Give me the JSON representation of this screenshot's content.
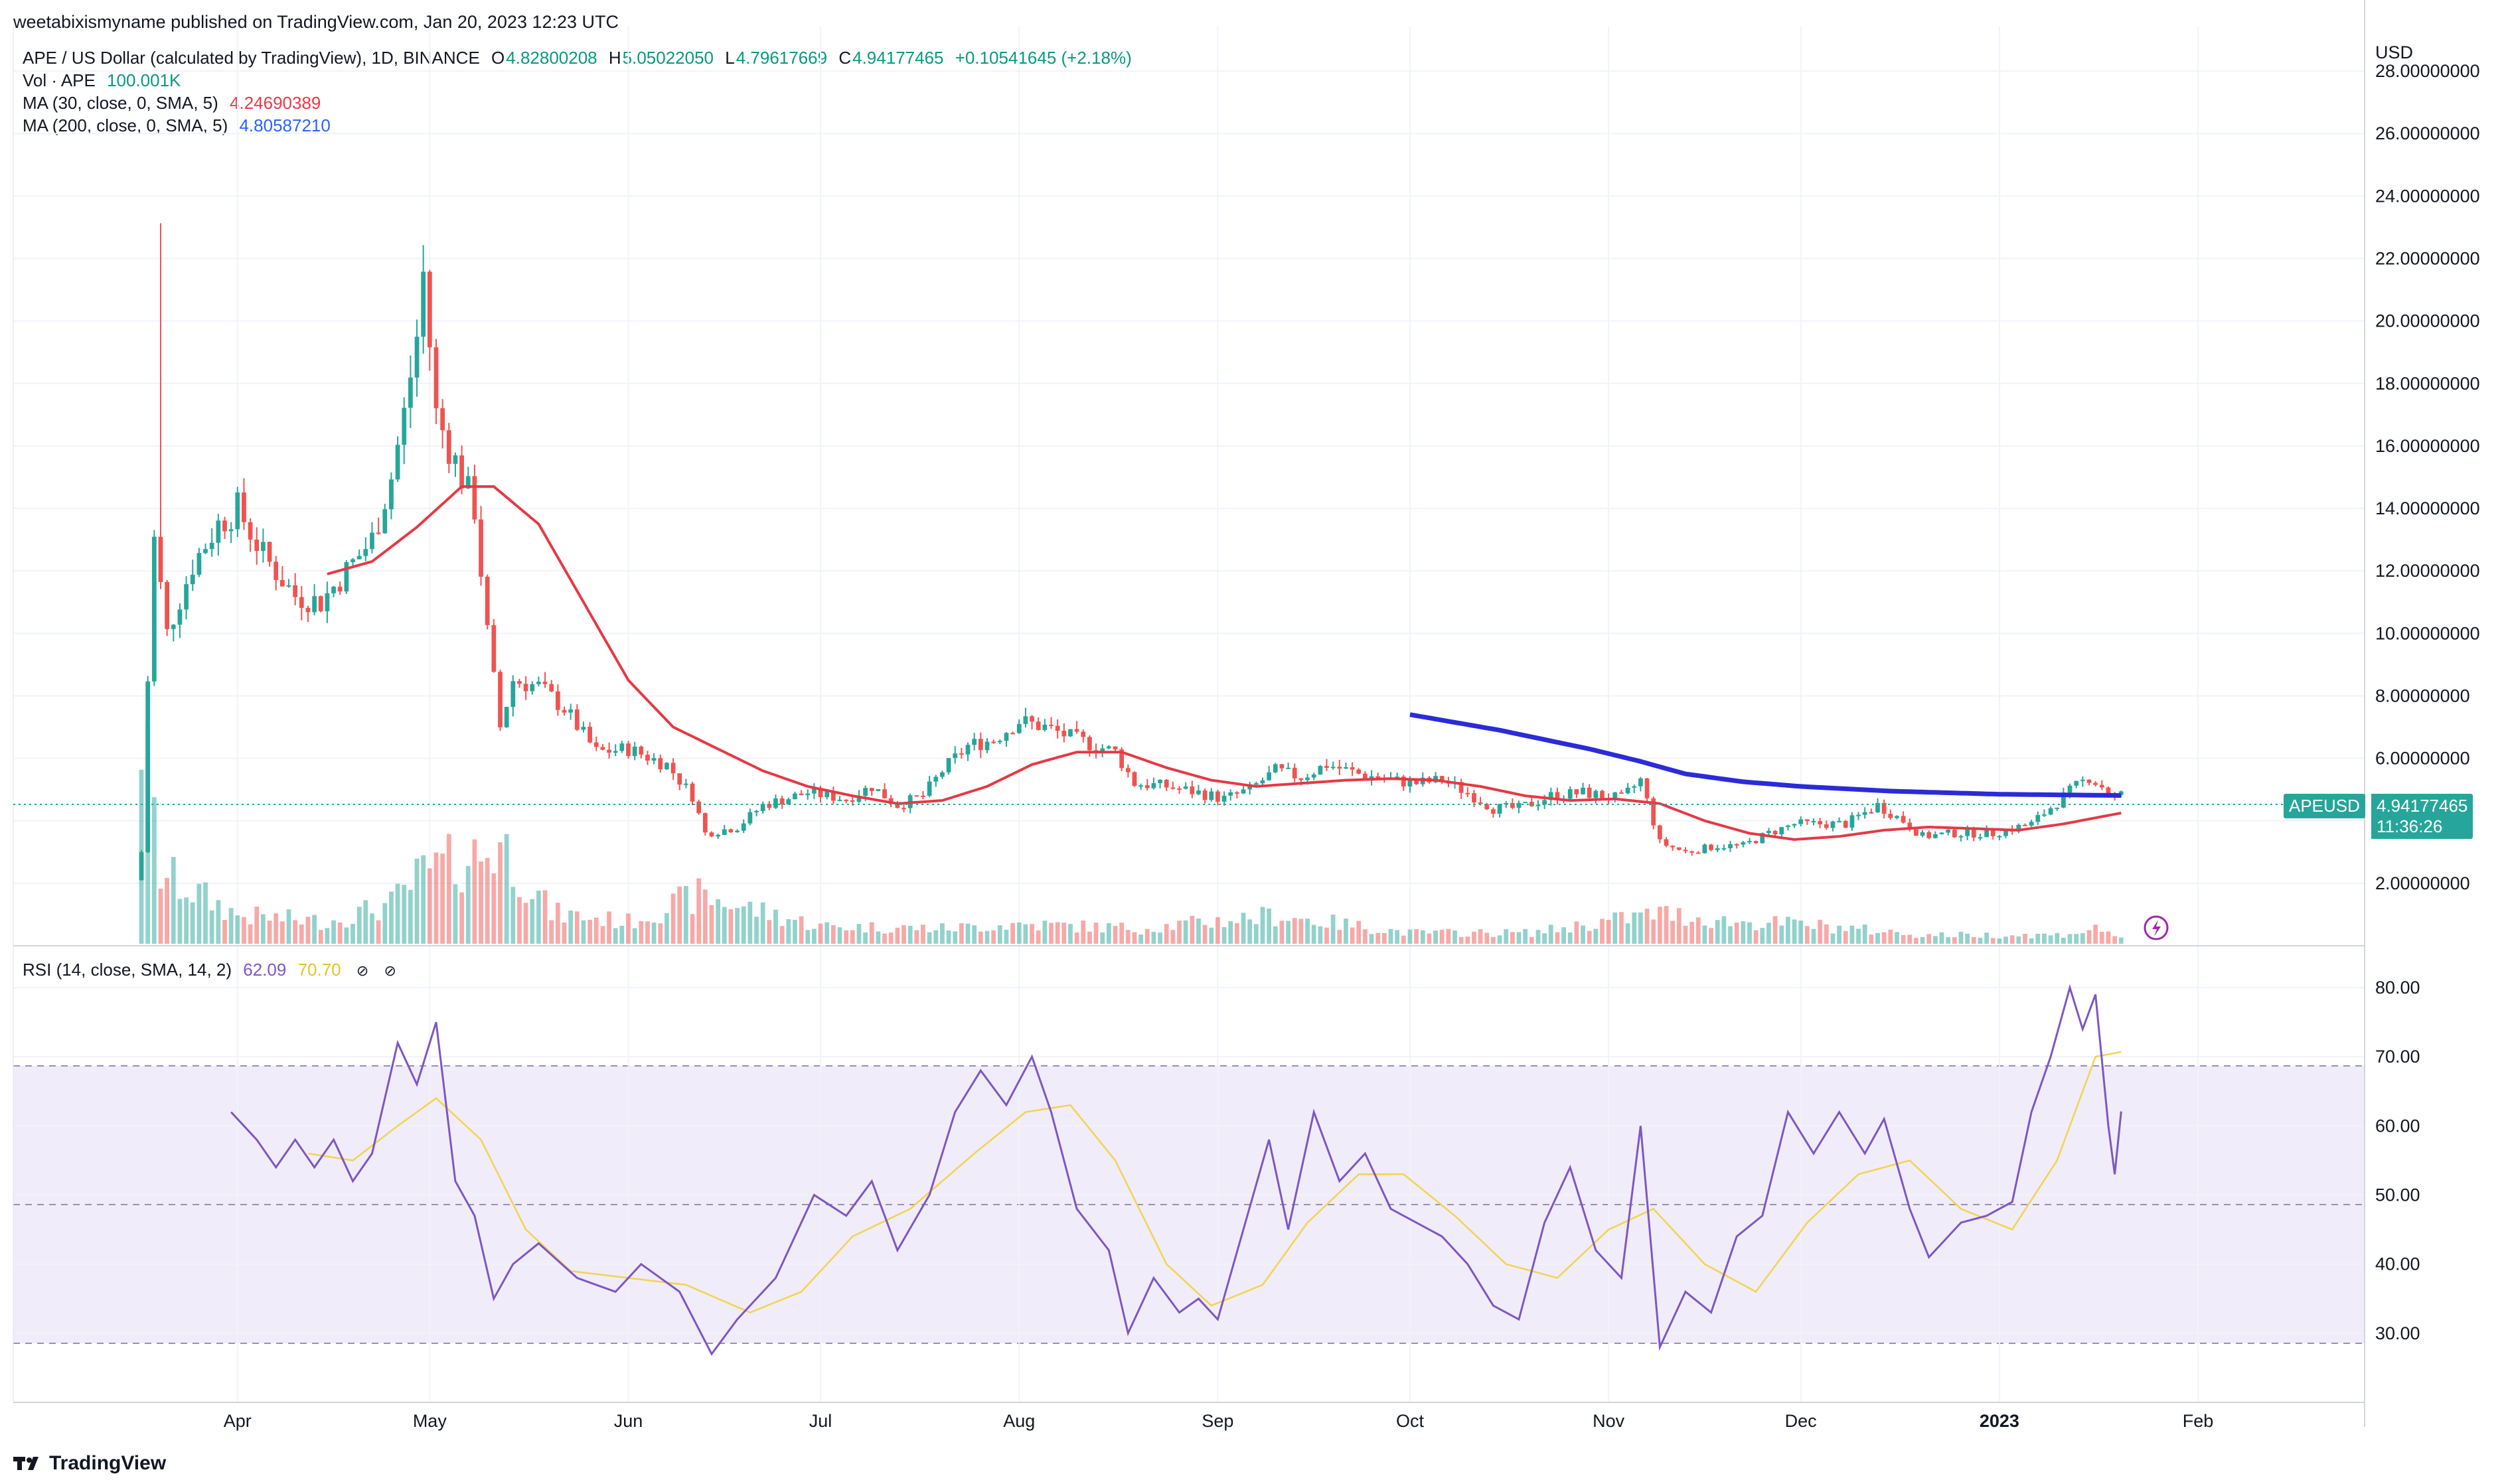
{
  "header": {
    "published": "weetabixismyname published on TradingView.com, Jan 20, 2023 12:23 UTC"
  },
  "legend": {
    "symbol": "APE / US Dollar (calculated by TradingView), 1D, BINANCE",
    "o_label": "O",
    "o": "4.82800208",
    "h_label": "H",
    "h": "5.05022050",
    "l_label": "L",
    "l": "4.79617669",
    "c_label": "C",
    "c": "4.94177465",
    "change": "+0.10541645 (+2.18%)",
    "vol_label": "Vol · APE",
    "vol": "100.001K",
    "ma30_label": "MA (30, close, 0, SMA, 5)",
    "ma30": "4.24690389",
    "ma200_label": "MA (200, close, 0, SMA, 5)",
    "ma200": "4.80587210",
    "rsi_label": "RSI (14, close, SMA, 14, 2)",
    "rsi": "62.09",
    "rsi_ma": "70.70",
    "eye_icon": "eye-off-icon"
  },
  "price_axis": {
    "currency": "USD",
    "ticks": [
      "28.00000000",
      "26.00000000",
      "24.00000000",
      "22.00000000",
      "20.00000000",
      "18.00000000",
      "16.00000000",
      "14.00000000",
      "12.00000000",
      "10.00000000",
      "8.00000000",
      "6.00000000",
      "4.00000000",
      "2.00000000"
    ]
  },
  "price_badge": {
    "symbol": "APEUSD",
    "price": "4.94177465",
    "countdown": "11:36:26"
  },
  "rsi_axis": {
    "ticks": [
      "80.00",
      "70.00",
      "60.00",
      "50.00",
      "40.00",
      "30.00"
    ]
  },
  "time_axis": {
    "ticks": [
      "Apr",
      "May",
      "Jun",
      "Jul",
      "Aug",
      "Sep",
      "Oct",
      "Nov",
      "Dec",
      "2023",
      "Feb"
    ]
  },
  "watermark": "TradingView",
  "colors": {
    "up": "#26a69a",
    "down": "#ef5350",
    "ma30": "#e53945",
    "ma200": "#2b2bd8",
    "rsi": "#7e57c2",
    "rsi_ma": "#f2d44e",
    "rsi_band": "#f0ecfa"
  },
  "chart_data": {
    "type": "candlestick",
    "symbol": "APE / US Dollar",
    "interval": "1D",
    "y_range": [
      0,
      29
    ],
    "rsi_range": [
      20,
      85
    ],
    "rsi_bands": [
      30,
      50,
      70
    ],
    "price_close_keypoints": [
      [
        "2022-03-17",
        3.0
      ],
      [
        "2022-03-18",
        8.5
      ],
      [
        "2022-03-19",
        13.0
      ],
      [
        "2022-03-21",
        10.0
      ],
      [
        "2022-03-25",
        12.2
      ],
      [
        "2022-03-29",
        13.5
      ],
      [
        "2022-04-01",
        14.0
      ],
      [
        "2022-04-05",
        12.5
      ],
      [
        "2022-04-10",
        11.2
      ],
      [
        "2022-04-14",
        11.0
      ],
      [
        "2022-04-18",
        12.0
      ],
      [
        "2022-04-22",
        13.0
      ],
      [
        "2022-04-25",
        15.0
      ],
      [
        "2022-04-27",
        17.0
      ],
      [
        "2022-04-29",
        19.5
      ],
      [
        "2022-04-30",
        21.5
      ],
      [
        "2022-05-02",
        17.0
      ],
      [
        "2022-05-05",
        15.5
      ],
      [
        "2022-05-08",
        14.0
      ],
      [
        "2022-05-10",
        10.0
      ],
      [
        "2022-05-12",
        7.0
      ],
      [
        "2022-05-14",
        8.5
      ],
      [
        "2022-05-18",
        8.3
      ],
      [
        "2022-05-22",
        7.6
      ],
      [
        "2022-05-27",
        6.2
      ],
      [
        "2022-06-01",
        6.3
      ],
      [
        "2022-06-07",
        5.8
      ],
      [
        "2022-06-11",
        4.8
      ],
      [
        "2022-06-13",
        3.6
      ],
      [
        "2022-06-18",
        3.8
      ],
      [
        "2022-06-22",
        4.5
      ],
      [
        "2022-06-29",
        4.9
      ],
      [
        "2022-07-05",
        4.7
      ],
      [
        "2022-07-09",
        5.1
      ],
      [
        "2022-07-13",
        4.5
      ],
      [
        "2022-07-17",
        4.8
      ],
      [
        "2022-07-20",
        5.6
      ],
      [
        "2022-07-24",
        6.4
      ],
      [
        "2022-07-28",
        6.6
      ],
      [
        "2022-08-01",
        7.2
      ],
      [
        "2022-08-05",
        7.0
      ],
      [
        "2022-08-10",
        6.6
      ],
      [
        "2022-08-16",
        6.2
      ],
      [
        "2022-08-19",
        5.2
      ],
      [
        "2022-08-24",
        5.1
      ],
      [
        "2022-08-29",
        4.9
      ],
      [
        "2022-09-02",
        4.7
      ],
      [
        "2022-09-06",
        5.0
      ],
      [
        "2022-09-10",
        5.6
      ],
      [
        "2022-09-14",
        5.4
      ],
      [
        "2022-09-18",
        5.8
      ],
      [
        "2022-09-23",
        5.5
      ],
      [
        "2022-09-28",
        5.3
      ],
      [
        "2022-10-02",
        5.2
      ],
      [
        "2022-10-06",
        5.3
      ],
      [
        "2022-10-10",
        4.9
      ],
      [
        "2022-10-14",
        4.4
      ],
      [
        "2022-10-18",
        4.4
      ],
      [
        "2022-10-23",
        4.8
      ],
      [
        "2022-10-28",
        4.9
      ],
      [
        "2022-11-03",
        4.7
      ],
      [
        "2022-11-06",
        5.3
      ],
      [
        "2022-11-09",
        3.3
      ],
      [
        "2022-11-13",
        3.0
      ],
      [
        "2022-11-18",
        3.2
      ],
      [
        "2022-11-22",
        3.2
      ],
      [
        "2022-11-26",
        3.6
      ],
      [
        "2022-11-30",
        3.9
      ],
      [
        "2022-12-04",
        3.9
      ],
      [
        "2022-12-08",
        3.9
      ],
      [
        "2022-12-13",
        4.5
      ],
      [
        "2022-12-17",
        4.0
      ],
      [
        "2022-12-20",
        3.5
      ],
      [
        "2022-12-25",
        3.6
      ],
      [
        "2022-12-31",
        3.6
      ],
      [
        "2023-01-06",
        3.9
      ],
      [
        "2023-01-10",
        4.6
      ],
      [
        "2023-01-13",
        5.1
      ],
      [
        "2023-01-15",
        5.4
      ],
      [
        "2023-01-17",
        5.1
      ],
      [
        "2023-01-19",
        4.7
      ],
      [
        "2023-01-20",
        4.94
      ]
    ],
    "ma30_keypoints": [
      [
        "2022-04-15",
        11.9
      ],
      [
        "2022-04-22",
        12.3
      ],
      [
        "2022-04-29",
        13.4
      ],
      [
        "2022-05-06",
        14.7
      ],
      [
        "2022-05-11",
        14.7
      ],
      [
        "2022-05-18",
        13.5
      ],
      [
        "2022-05-25",
        11.0
      ],
      [
        "2022-06-01",
        8.5
      ],
      [
        "2022-06-08",
        7.0
      ],
      [
        "2022-06-15",
        6.3
      ],
      [
        "2022-06-22",
        5.6
      ],
      [
        "2022-06-29",
        5.1
      ],
      [
        "2022-07-06",
        4.8
      ],
      [
        "2022-07-13",
        4.55
      ],
      [
        "2022-07-20",
        4.65
      ],
      [
        "2022-07-27",
        5.1
      ],
      [
        "2022-08-03",
        5.8
      ],
      [
        "2022-08-10",
        6.2
      ],
      [
        "2022-08-17",
        6.2
      ],
      [
        "2022-08-24",
        5.7
      ],
      [
        "2022-08-31",
        5.3
      ],
      [
        "2022-09-07",
        5.1
      ],
      [
        "2022-09-14",
        5.2
      ],
      [
        "2022-09-21",
        5.3
      ],
      [
        "2022-09-28",
        5.35
      ],
      [
        "2022-10-05",
        5.3
      ],
      [
        "2022-10-12",
        5.1
      ],
      [
        "2022-10-19",
        4.8
      ],
      [
        "2022-10-26",
        4.65
      ],
      [
        "2022-11-02",
        4.7
      ],
      [
        "2022-11-09",
        4.55
      ],
      [
        "2022-11-16",
        4.0
      ],
      [
        "2022-11-23",
        3.6
      ],
      [
        "2022-11-30",
        3.4
      ],
      [
        "2022-12-07",
        3.5
      ],
      [
        "2022-12-14",
        3.7
      ],
      [
        "2022-12-21",
        3.8
      ],
      [
        "2022-12-28",
        3.75
      ],
      [
        "2023-01-04",
        3.7
      ],
      [
        "2023-01-11",
        3.9
      ],
      [
        "2023-01-20",
        4.25
      ]
    ],
    "ma200_keypoints": [
      [
        "2022-10-01",
        7.4
      ],
      [
        "2022-10-15",
        6.9
      ],
      [
        "2022-10-29",
        6.3
      ],
      [
        "2022-11-06",
        5.9
      ],
      [
        "2022-11-13",
        5.5
      ],
      [
        "2022-11-22",
        5.25
      ],
      [
        "2022-12-01",
        5.1
      ],
      [
        "2022-12-15",
        4.95
      ],
      [
        "2023-01-01",
        4.85
      ],
      [
        "2023-01-20",
        4.81
      ]
    ],
    "volume_keypoints": [
      [
        "2022-03-17",
        1.0
      ],
      [
        "2022-03-20",
        0.32
      ],
      [
        "2022-04-01",
        0.13
      ],
      [
        "2022-04-15",
        0.1
      ],
      [
        "2022-04-25",
        0.18
      ],
      [
        "2022-04-30",
        0.32
      ],
      [
        "2022-05-10",
        0.42
      ],
      [
        "2022-05-12",
        0.46
      ],
      [
        "2022-05-20",
        0.14
      ],
      [
        "2022-06-01",
        0.1
      ],
      [
        "2022-06-12",
        0.22
      ],
      [
        "2022-07-01",
        0.08
      ],
      [
        "2022-07-20",
        0.07
      ],
      [
        "2022-08-01",
        0.09
      ],
      [
        "2022-08-20",
        0.07
      ],
      [
        "2022-09-10",
        0.13
      ],
      [
        "2022-10-01",
        0.05
      ],
      [
        "2022-10-20",
        0.05
      ],
      [
        "2022-11-09",
        0.14
      ],
      [
        "2022-11-20",
        0.1
      ],
      [
        "2022-12-01",
        0.09
      ],
      [
        "2022-12-20",
        0.04
      ],
      [
        "2023-01-10",
        0.04
      ],
      [
        "2023-01-17",
        0.07
      ],
      [
        "2023-01-20",
        0.03
      ]
    ],
    "rsi_keypoints": [
      [
        "2022-03-31",
        62
      ],
      [
        "2022-04-04",
        58
      ],
      [
        "2022-04-07",
        54
      ],
      [
        "2022-04-10",
        58
      ],
      [
        "2022-04-13",
        54
      ],
      [
        "2022-04-16",
        58
      ],
      [
        "2022-04-19",
        52
      ],
      [
        "2022-04-22",
        56
      ],
      [
        "2022-04-26",
        72
      ],
      [
        "2022-04-29",
        66
      ],
      [
        "2022-05-02",
        75
      ],
      [
        "2022-05-05",
        52
      ],
      [
        "2022-05-08",
        47
      ],
      [
        "2022-05-11",
        35
      ],
      [
        "2022-05-14",
        40
      ],
      [
        "2022-05-18",
        43
      ],
      [
        "2022-05-24",
        38
      ],
      [
        "2022-05-30",
        36
      ],
      [
        "2022-06-03",
        40
      ],
      [
        "2022-06-09",
        36
      ],
      [
        "2022-06-14",
        27
      ],
      [
        "2022-06-18",
        32
      ],
      [
        "2022-06-24",
        38
      ],
      [
        "2022-06-30",
        50
      ],
      [
        "2022-07-05",
        47
      ],
      [
        "2022-07-09",
        52
      ],
      [
        "2022-07-13",
        42
      ],
      [
        "2022-07-18",
        50
      ],
      [
        "2022-07-22",
        62
      ],
      [
        "2022-07-26",
        68
      ],
      [
        "2022-07-30",
        63
      ],
      [
        "2022-08-03",
        70
      ],
      [
        "2022-08-06",
        62
      ],
      [
        "2022-08-10",
        48
      ],
      [
        "2022-08-15",
        42
      ],
      [
        "2022-08-18",
        30
      ],
      [
        "2022-08-22",
        38
      ],
      [
        "2022-08-26",
        33
      ],
      [
        "2022-08-29",
        35
      ],
      [
        "2022-09-01",
        32
      ],
      [
        "2022-09-05",
        45
      ],
      [
        "2022-09-09",
        58
      ],
      [
        "2022-09-12",
        45
      ],
      [
        "2022-09-16",
        62
      ],
      [
        "2022-09-20",
        52
      ],
      [
        "2022-09-24",
        56
      ],
      [
        "2022-09-28",
        48
      ],
      [
        "2022-10-02",
        46
      ],
      [
        "2022-10-06",
        44
      ],
      [
        "2022-10-10",
        40
      ],
      [
        "2022-10-14",
        34
      ],
      [
        "2022-10-18",
        32
      ],
      [
        "2022-10-22",
        46
      ],
      [
        "2022-10-26",
        54
      ],
      [
        "2022-10-30",
        42
      ],
      [
        "2022-11-03",
        38
      ],
      [
        "2022-11-06",
        60
      ],
      [
        "2022-11-09",
        28
      ],
      [
        "2022-11-13",
        36
      ],
      [
        "2022-11-17",
        33
      ],
      [
        "2022-11-21",
        44
      ],
      [
        "2022-11-25",
        47
      ],
      [
        "2022-11-29",
        62
      ],
      [
        "2022-12-03",
        56
      ],
      [
        "2022-12-07",
        62
      ],
      [
        "2022-12-11",
        56
      ],
      [
        "2022-12-14",
        61
      ],
      [
        "2022-12-18",
        48
      ],
      [
        "2022-12-21",
        41
      ],
      [
        "2022-12-26",
        46
      ],
      [
        "2022-12-30",
        47
      ],
      [
        "2023-01-03",
        49
      ],
      [
        "2023-01-06",
        62
      ],
      [
        "2023-01-09",
        70
      ],
      [
        "2023-01-12",
        80
      ],
      [
        "2023-01-14",
        74
      ],
      [
        "2023-01-16",
        79
      ],
      [
        "2023-01-18",
        60
      ],
      [
        "2023-01-19",
        53
      ],
      [
        "2023-01-20",
        62.09
      ]
    ],
    "rsi_ma_keypoints": [
      [
        "2022-04-12",
        56
      ],
      [
        "2022-04-19",
        55
      ],
      [
        "2022-04-26",
        60
      ],
      [
        "2022-05-02",
        64
      ],
      [
        "2022-05-09",
        58
      ],
      [
        "2022-05-16",
        45
      ],
      [
        "2022-05-23",
        39
      ],
      [
        "2022-06-01",
        38
      ],
      [
        "2022-06-10",
        37
      ],
      [
        "2022-06-20",
        33
      ],
      [
        "2022-06-28",
        36
      ],
      [
        "2022-07-06",
        44
      ],
      [
        "2022-07-15",
        48
      ],
      [
        "2022-07-25",
        56
      ],
      [
        "2022-08-02",
        62
      ],
      [
        "2022-08-09",
        63
      ],
      [
        "2022-08-16",
        55
      ],
      [
        "2022-08-24",
        40
      ],
      [
        "2022-08-31",
        34
      ],
      [
        "2022-09-08",
        37
      ],
      [
        "2022-09-15",
        46
      ],
      [
        "2022-09-23",
        53
      ],
      [
        "2022-09-30",
        53
      ],
      [
        "2022-10-08",
        47
      ],
      [
        "2022-10-16",
        40
      ],
      [
        "2022-10-24",
        38
      ],
      [
        "2022-11-01",
        45
      ],
      [
        "2022-11-08",
        48
      ],
      [
        "2022-11-16",
        40
      ],
      [
        "2022-11-24",
        36
      ],
      [
        "2022-12-02",
        46
      ],
      [
        "2022-12-10",
        53
      ],
      [
        "2022-12-18",
        55
      ],
      [
        "2022-12-26",
        48
      ],
      [
        "2023-01-03",
        45
      ],
      [
        "2023-01-10",
        55
      ],
      [
        "2023-01-16",
        70
      ],
      [
        "2023-01-20",
        70.7
      ]
    ]
  }
}
